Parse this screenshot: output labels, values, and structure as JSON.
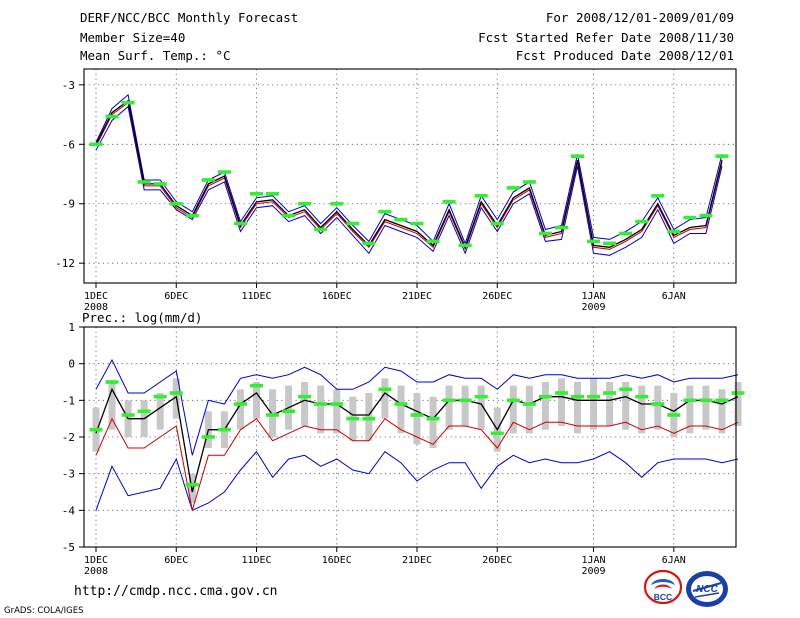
{
  "header": {
    "title": "DERF/NCC/BCC Monthly Forecast",
    "member_size": "Member Size=40",
    "variable": "Mean Surf. Temp.: °C",
    "period": "For 2008/12/01-2009/01/09",
    "fcst_started": "Fcst Started Refer Date 2008/11/30",
    "fcst_produced": "Fcst Produced Date 2008/12/01"
  },
  "footer": {
    "url": "http://cmdp.ncc.cma.gov.cn",
    "grads_credit": "GrADS: COLA/IGES",
    "logo_bcc_text": "BCC",
    "logo_ncc_text": "NCC"
  },
  "colors": {
    "frame": "#000000",
    "grid": "#555555",
    "ensemble_mean": "#000000",
    "ensemble_median": "#cc0000",
    "ensemble_bounds": "#0000cc",
    "observed_marker": "#33ee33",
    "spread_box": "#c8c8c8"
  },
  "chart_data": [
    {
      "type": "line",
      "title": "Mean Surf. Temp.: °C",
      "ylim": [
        -13,
        -2.2
      ],
      "yticks": [
        "-3",
        "-6",
        "-9",
        "-12"
      ],
      "ytick_values": [
        -3,
        -6,
        -9,
        -12
      ],
      "xticks": [
        {
          "label": "1DEC",
          "sub": "2008",
          "day": 1
        },
        {
          "label": "6DEC",
          "sub": "",
          "day": 6
        },
        {
          "label": "11DEC",
          "sub": "",
          "day": 11
        },
        {
          "label": "16DEC",
          "sub": "",
          "day": 16
        },
        {
          "label": "21DEC",
          "sub": "",
          "day": 21
        },
        {
          "label": "26DEC",
          "sub": "",
          "day": 26
        },
        {
          "label": "1JAN",
          "sub": "2009",
          "day": 32
        },
        {
          "label": "6JAN",
          "sub": "",
          "day": 37
        }
      ],
      "x_range": [
        0,
        41
      ],
      "grid": true,
      "series": [
        {
          "name": "ensemble-mean",
          "color": "black",
          "values": [
            -6.0,
            -4.4,
            -3.8,
            -8.0,
            -8.0,
            -9.1,
            -9.6,
            -8.0,
            -7.6,
            -10.1,
            -8.9,
            -8.8,
            -9.6,
            -9.3,
            -10.2,
            -9.4,
            -10.3,
            -11.1,
            -9.8,
            -10.1,
            -10.4,
            -11.1,
            -9.3,
            -11.2,
            -8.9,
            -10.1,
            -8.7,
            -8.2,
            -10.6,
            -10.4,
            -6.8,
            -11.1,
            -11.2,
            -10.8,
            -10.3,
            -9.0,
            -10.6,
            -10.2,
            -10.1,
            -6.8
          ]
        },
        {
          "name": "ensemble-median",
          "color": "red",
          "values": [
            -6.1,
            -4.5,
            -3.9,
            -8.1,
            -8.1,
            -9.2,
            -9.7,
            -8.1,
            -7.7,
            -10.2,
            -9.0,
            -8.9,
            -9.7,
            -9.4,
            -10.3,
            -9.5,
            -10.4,
            -11.2,
            -9.9,
            -10.2,
            -10.5,
            -11.2,
            -9.4,
            -11.3,
            -9.0,
            -10.2,
            -8.8,
            -8.3,
            -10.7,
            -10.5,
            -6.9,
            -11.2,
            -11.3,
            -10.9,
            -10.4,
            -9.1,
            -10.7,
            -10.3,
            -10.2,
            -6.9
          ]
        },
        {
          "name": "ensemble-max",
          "color": "blue",
          "values": [
            -5.9,
            -4.2,
            -3.5,
            -7.8,
            -7.8,
            -8.9,
            -9.4,
            -7.8,
            -7.4,
            -9.9,
            -8.7,
            -8.6,
            -9.4,
            -9.1,
            -10.0,
            -9.2,
            -10.1,
            -10.9,
            -9.5,
            -9.8,
            -10.1,
            -10.9,
            -9.0,
            -11.0,
            -8.6,
            -9.8,
            -8.4,
            -7.9,
            -10.3,
            -10.1,
            -6.5,
            -10.7,
            -10.8,
            -10.4,
            -9.9,
            -8.7,
            -10.3,
            -9.8,
            -9.7,
            -6.5
          ]
        },
        {
          "name": "ensemble-min",
          "color": "blue",
          "values": [
            -6.3,
            -4.8,
            -4.1,
            -8.3,
            -8.3,
            -9.3,
            -9.8,
            -8.3,
            -7.9,
            -10.4,
            -9.2,
            -9.1,
            -9.9,
            -9.6,
            -10.5,
            -9.7,
            -10.6,
            -11.5,
            -10.1,
            -10.4,
            -10.7,
            -11.4,
            -9.6,
            -11.5,
            -9.2,
            -10.4,
            -9.0,
            -8.5,
            -10.9,
            -10.8,
            -7.1,
            -11.5,
            -11.6,
            -11.2,
            -10.7,
            -9.3,
            -11.0,
            -10.5,
            -10.5,
            -7.1
          ]
        }
      ],
      "observed": [
        -6.0,
        -4.6,
        -3.9,
        -7.9,
        -8.0,
        -9.0,
        -9.6,
        -7.8,
        -7.4,
        -10.0,
        -8.5,
        -8.5,
        -9.6,
        -9.0,
        -10.3,
        -9.0,
        -10.0,
        -11.0,
        -9.4,
        -9.8,
        -10.0,
        -10.9,
        -8.9,
        -11.1,
        -8.6,
        -10.0,
        -8.2,
        -7.9,
        -10.5,
        -10.2,
        -6.6,
        -10.9,
        -11.0,
        -10.5,
        -9.9,
        -8.6,
        -10.4,
        -9.7,
        -9.6,
        -6.6
      ]
    },
    {
      "type": "line",
      "title": "Prec.: log(mm/d)",
      "ylim": [
        -5,
        1
      ],
      "yticks": [
        "1",
        "0",
        "-1",
        "-2",
        "-3",
        "-4",
        "-5"
      ],
      "ytick_values": [
        1,
        0,
        -1,
        -2,
        -3,
        -4,
        -5
      ],
      "xticks": [
        {
          "label": "1DEC",
          "sub": "2008",
          "day": 1
        },
        {
          "label": "6DEC",
          "sub": "",
          "day": 6
        },
        {
          "label": "11DEC",
          "sub": "",
          "day": 11
        },
        {
          "label": "16DEC",
          "sub": "",
          "day": 16
        },
        {
          "label": "21DEC",
          "sub": "",
          "day": 21
        },
        {
          "label": "26DEC",
          "sub": "",
          "day": 26
        },
        {
          "label": "1JAN",
          "sub": "2009",
          "day": 32
        },
        {
          "label": "6JAN",
          "sub": "",
          "day": 37
        }
      ],
      "x_range": [
        0,
        41
      ],
      "grid": true,
      "series": [
        {
          "name": "ensemble-mean",
          "color": "black",
          "values": [
            -1.9,
            -0.7,
            -1.5,
            -1.5,
            -1.2,
            -0.9,
            -3.5,
            -1.8,
            -1.8,
            -1.1,
            -0.8,
            -1.4,
            -1.2,
            -1.0,
            -1.1,
            -1.1,
            -1.4,
            -1.4,
            -0.8,
            -1.1,
            -1.3,
            -1.5,
            -1.0,
            -1.0,
            -1.1,
            -1.8,
            -1.0,
            -1.1,
            -0.9,
            -0.9,
            -1.0,
            -1.0,
            -1.0,
            -0.9,
            -1.1,
            -1.1,
            -1.3,
            -1.0,
            -1.0,
            -1.1,
            -0.9
          ]
        },
        {
          "name": "ensemble-median",
          "color": "red",
          "values": [
            -2.5,
            -1.5,
            -2.3,
            -2.3,
            -2.0,
            -1.7,
            -4.0,
            -2.5,
            -2.5,
            -1.8,
            -1.5,
            -2.1,
            -1.9,
            -1.7,
            -1.8,
            -1.8,
            -2.1,
            -2.1,
            -1.5,
            -1.8,
            -2.0,
            -2.2,
            -1.7,
            -1.7,
            -1.8,
            -2.3,
            -1.6,
            -1.8,
            -1.6,
            -1.6,
            -1.7,
            -1.7,
            -1.7,
            -1.6,
            -1.8,
            -1.7,
            -1.9,
            -1.7,
            -1.7,
            -1.8,
            -1.6
          ]
        },
        {
          "name": "ensemble-max",
          "color": "blue",
          "values": [
            -0.7,
            0.1,
            -0.8,
            -0.8,
            -0.5,
            -0.2,
            -2.5,
            -1.0,
            -1.1,
            -0.4,
            -0.3,
            -0.4,
            -0.3,
            -0.1,
            -0.3,
            -0.7,
            -0.7,
            -0.5,
            -0.1,
            -0.2,
            -0.5,
            -0.5,
            -0.3,
            -0.4,
            -0.4,
            -0.7,
            -0.3,
            -0.4,
            -0.3,
            -0.3,
            -0.4,
            -0.4,
            -0.4,
            -0.3,
            -0.4,
            -0.3,
            -0.5,
            -0.4,
            -0.4,
            -0.4,
            -0.3
          ]
        },
        {
          "name": "ensemble-min",
          "color": "blue",
          "values": [
            -4.0,
            -2.8,
            -3.6,
            -3.5,
            -3.4,
            -2.6,
            -4.0,
            -3.8,
            -3.5,
            -2.9,
            -2.4,
            -3.1,
            -2.6,
            -2.5,
            -2.8,
            -2.6,
            -2.9,
            -3.0,
            -2.4,
            -2.7,
            -3.2,
            -2.9,
            -2.7,
            -2.7,
            -3.4,
            -2.8,
            -2.5,
            -2.7,
            -2.6,
            -2.7,
            -2.7,
            -2.6,
            -2.4,
            -2.7,
            -3.1,
            -2.7,
            -2.6,
            -2.6,
            -2.6,
            -2.7,
            -2.6
          ]
        }
      ],
      "box_low": [
        -2.4,
        -1.8,
        -2.0,
        -2.0,
        -1.8,
        -1.5,
        -3.8,
        -2.3,
        -2.3,
        -1.8,
        -1.5,
        -2.0,
        -1.8,
        -1.7,
        -1.9,
        -1.9,
        -2.1,
        -2.1,
        -1.5,
        -1.9,
        -2.2,
        -2.3,
        -1.8,
        -1.7,
        -1.8,
        -2.4,
        -1.9,
        -1.9,
        -1.8,
        -1.7,
        -1.9,
        -1.8,
        -1.7,
        -1.8,
        -1.9,
        -1.8,
        -2.0,
        -1.9,
        -1.8,
        -1.9,
        -1.7
      ],
      "box_high": [
        -1.2,
        -0.5,
        -1.0,
        -1.0,
        -0.8,
        -0.4,
        -3.0,
        -1.3,
        -1.3,
        -0.7,
        -0.5,
        -0.7,
        -0.6,
        -0.5,
        -0.6,
        -0.7,
        -0.9,
        -0.8,
        -0.4,
        -0.6,
        -0.8,
        -0.9,
        -0.6,
        -0.6,
        -0.6,
        -1.2,
        -0.6,
        -0.6,
        -0.5,
        -0.4,
        -0.5,
        -0.4,
        -0.5,
        -0.5,
        -0.6,
        -0.6,
        -0.8,
        -0.6,
        -0.6,
        -0.7,
        -0.5
      ],
      "observed": [
        -1.8,
        -0.5,
        -1.4,
        -1.3,
        -0.9,
        -0.8,
        -3.3,
        -2.0,
        -1.8,
        -1.1,
        -0.6,
        -1.4,
        -1.3,
        -0.9,
        -1.1,
        -1.1,
        -1.5,
        -1.5,
        -0.7,
        -1.1,
        -1.4,
        -1.5,
        -1.0,
        -1.0,
        -0.9,
        -1.9,
        -1.0,
        -1.1,
        -0.9,
        -0.8,
        -0.9,
        -0.9,
        -0.8,
        -0.7,
        -0.9,
        -1.1,
        -1.4,
        -1.0,
        -1.0,
        -1.0,
        -0.8
      ]
    }
  ]
}
